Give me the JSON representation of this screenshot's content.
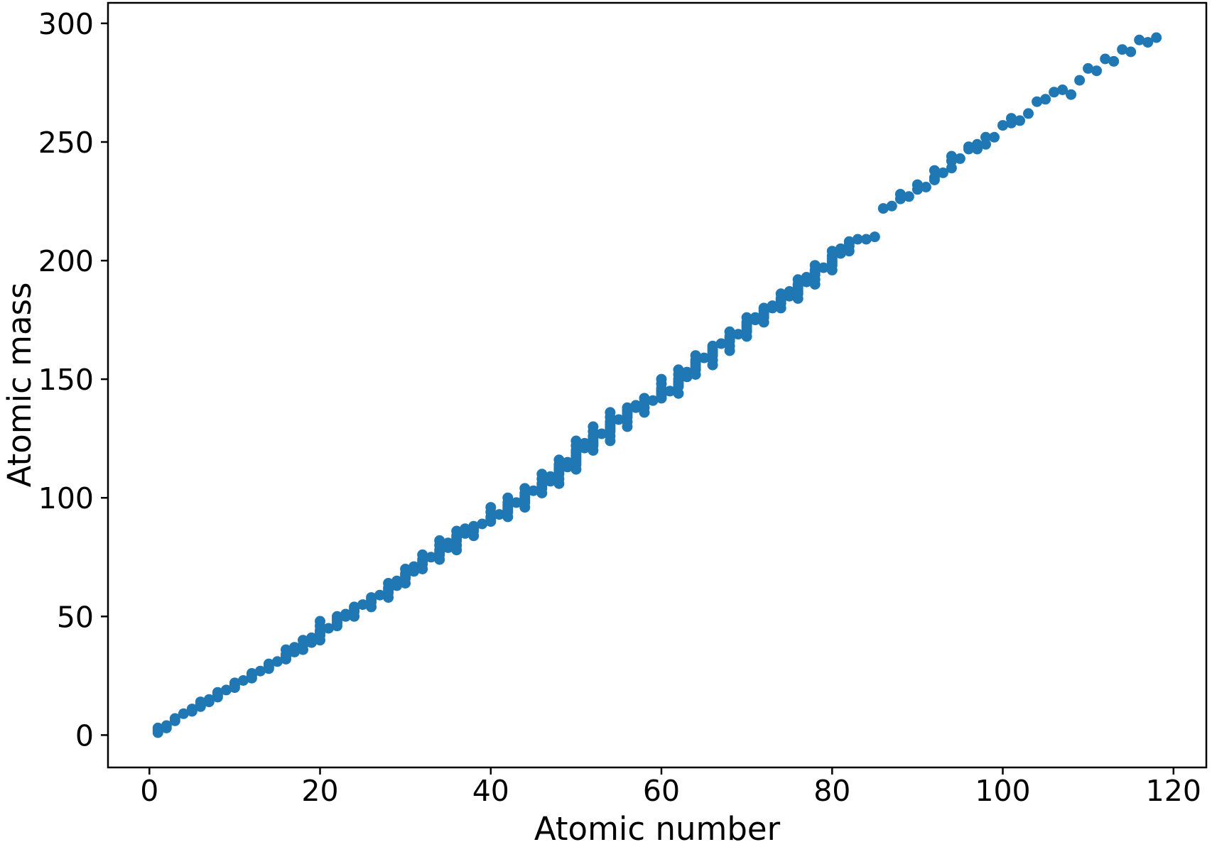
{
  "chart_data": {
    "type": "scatter",
    "title": "",
    "xlabel": "Atomic number",
    "ylabel": "Atomic mass",
    "legend": null,
    "grid": false,
    "marker_color": "#1f77b4",
    "background_color": "#ffffff",
    "axis_color": "#000000",
    "x_ticks": [
      0,
      20,
      40,
      60,
      80,
      100,
      120
    ],
    "y_ticks": [
      0,
      50,
      100,
      150,
      200,
      250,
      300
    ],
    "xlim": [
      -4.85,
      123.85
    ],
    "ylim": [
      -13.65,
      308.65
    ],
    "points": [
      {
        "z": 1,
        "masses": [
          1,
          2,
          3
        ]
      },
      {
        "z": 2,
        "masses": [
          3,
          4
        ]
      },
      {
        "z": 3,
        "masses": [
          6,
          7
        ]
      },
      {
        "z": 4,
        "masses": [
          9
        ]
      },
      {
        "z": 5,
        "masses": [
          10,
          11
        ]
      },
      {
        "z": 6,
        "masses": [
          12,
          13,
          14
        ]
      },
      {
        "z": 7,
        "masses": [
          14,
          15
        ]
      },
      {
        "z": 8,
        "masses": [
          16,
          17,
          18
        ]
      },
      {
        "z": 9,
        "masses": [
          19
        ]
      },
      {
        "z": 10,
        "masses": [
          20,
          21,
          22
        ]
      },
      {
        "z": 11,
        "masses": [
          23
        ]
      },
      {
        "z": 12,
        "masses": [
          24,
          25,
          26
        ]
      },
      {
        "z": 13,
        "masses": [
          27
        ]
      },
      {
        "z": 14,
        "masses": [
          28,
          29,
          30
        ]
      },
      {
        "z": 15,
        "masses": [
          31
        ]
      },
      {
        "z": 16,
        "masses": [
          32,
          33,
          34,
          36
        ]
      },
      {
        "z": 17,
        "masses": [
          35,
          37
        ]
      },
      {
        "z": 18,
        "masses": [
          36,
          38,
          40
        ]
      },
      {
        "z": 19,
        "masses": [
          39,
          40,
          41
        ]
      },
      {
        "z": 20,
        "masses": [
          40,
          42,
          43,
          44,
          46,
          48
        ]
      },
      {
        "z": 21,
        "masses": [
          45
        ]
      },
      {
        "z": 22,
        "masses": [
          46,
          47,
          48,
          49,
          50
        ]
      },
      {
        "z": 23,
        "masses": [
          50,
          51
        ]
      },
      {
        "z": 24,
        "masses": [
          50,
          52,
          53,
          54
        ]
      },
      {
        "z": 25,
        "masses": [
          55
        ]
      },
      {
        "z": 26,
        "masses": [
          54,
          56,
          57,
          58
        ]
      },
      {
        "z": 27,
        "masses": [
          59
        ]
      },
      {
        "z": 28,
        "masses": [
          58,
          60,
          61,
          62,
          64
        ]
      },
      {
        "z": 29,
        "masses": [
          63,
          65
        ]
      },
      {
        "z": 30,
        "masses": [
          64,
          66,
          67,
          68,
          70
        ]
      },
      {
        "z": 31,
        "masses": [
          69,
          71
        ]
      },
      {
        "z": 32,
        "masses": [
          70,
          72,
          73,
          74,
          76
        ]
      },
      {
        "z": 33,
        "masses": [
          75
        ]
      },
      {
        "z": 34,
        "masses": [
          74,
          76,
          77,
          78,
          80,
          82
        ]
      },
      {
        "z": 35,
        "masses": [
          79,
          81
        ]
      },
      {
        "z": 36,
        "masses": [
          78,
          80,
          82,
          83,
          84,
          86
        ]
      },
      {
        "z": 37,
        "masses": [
          85,
          87
        ]
      },
      {
        "z": 38,
        "masses": [
          84,
          86,
          87,
          88
        ]
      },
      {
        "z": 39,
        "masses": [
          89
        ]
      },
      {
        "z": 40,
        "masses": [
          90,
          91,
          92,
          94,
          96
        ]
      },
      {
        "z": 41,
        "masses": [
          93
        ]
      },
      {
        "z": 42,
        "masses": [
          92,
          94,
          95,
          96,
          97,
          98,
          100
        ]
      },
      {
        "z": 43,
        "masses": [
          98
        ]
      },
      {
        "z": 44,
        "masses": [
          96,
          98,
          99,
          100,
          101,
          102,
          104
        ]
      },
      {
        "z": 45,
        "masses": [
          103
        ]
      },
      {
        "z": 46,
        "masses": [
          102,
          104,
          105,
          106,
          108,
          110
        ]
      },
      {
        "z": 47,
        "masses": [
          107,
          109
        ]
      },
      {
        "z": 48,
        "masses": [
          106,
          108,
          110,
          111,
          112,
          113,
          114,
          116
        ]
      },
      {
        "z": 49,
        "masses": [
          113,
          115
        ]
      },
      {
        "z": 50,
        "masses": [
          112,
          114,
          115,
          116,
          117,
          118,
          119,
          120,
          122,
          124
        ]
      },
      {
        "z": 51,
        "masses": [
          121,
          123
        ]
      },
      {
        "z": 52,
        "masses": [
          120,
          122,
          123,
          124,
          125,
          126,
          128,
          130
        ]
      },
      {
        "z": 53,
        "masses": [
          127
        ]
      },
      {
        "z": 54,
        "masses": [
          124,
          126,
          128,
          129,
          130,
          131,
          132,
          134,
          136
        ]
      },
      {
        "z": 55,
        "masses": [
          133
        ]
      },
      {
        "z": 56,
        "masses": [
          130,
          132,
          134,
          135,
          136,
          137,
          138
        ]
      },
      {
        "z": 57,
        "masses": [
          138,
          139
        ]
      },
      {
        "z": 58,
        "masses": [
          136,
          138,
          140,
          142
        ]
      },
      {
        "z": 59,
        "masses": [
          141
        ]
      },
      {
        "z": 60,
        "masses": [
          142,
          143,
          144,
          145,
          146,
          148,
          150
        ]
      },
      {
        "z": 61,
        "masses": [
          145
        ]
      },
      {
        "z": 62,
        "masses": [
          144,
          147,
          148,
          149,
          150,
          152,
          154
        ]
      },
      {
        "z": 63,
        "masses": [
          151,
          153
        ]
      },
      {
        "z": 64,
        "masses": [
          152,
          154,
          155,
          156,
          157,
          158,
          160
        ]
      },
      {
        "z": 65,
        "masses": [
          159
        ]
      },
      {
        "z": 66,
        "masses": [
          156,
          158,
          160,
          161,
          162,
          163,
          164
        ]
      },
      {
        "z": 67,
        "masses": [
          165
        ]
      },
      {
        "z": 68,
        "masses": [
          162,
          164,
          166,
          167,
          168,
          170
        ]
      },
      {
        "z": 69,
        "masses": [
          169
        ]
      },
      {
        "z": 70,
        "masses": [
          168,
          170,
          171,
          172,
          173,
          174,
          176
        ]
      },
      {
        "z": 71,
        "masses": [
          175,
          176
        ]
      },
      {
        "z": 72,
        "masses": [
          174,
          176,
          177,
          178,
          179,
          180
        ]
      },
      {
        "z": 73,
        "masses": [
          180,
          181
        ]
      },
      {
        "z": 74,
        "masses": [
          180,
          182,
          183,
          184,
          186
        ]
      },
      {
        "z": 75,
        "masses": [
          185,
          187
        ]
      },
      {
        "z": 76,
        "masses": [
          184,
          186,
          187,
          188,
          189,
          190,
          192
        ]
      },
      {
        "z": 77,
        "masses": [
          191,
          193
        ]
      },
      {
        "z": 78,
        "masses": [
          190,
          192,
          194,
          195,
          196,
          198
        ]
      },
      {
        "z": 79,
        "masses": [
          197
        ]
      },
      {
        "z": 80,
        "masses": [
          196,
          198,
          199,
          200,
          201,
          202,
          204
        ]
      },
      {
        "z": 81,
        "masses": [
          203,
          205
        ]
      },
      {
        "z": 82,
        "masses": [
          204,
          206,
          207,
          208
        ]
      },
      {
        "z": 83,
        "masses": [
          209
        ]
      },
      {
        "z": 84,
        "masses": [
          209
        ]
      },
      {
        "z": 85,
        "masses": [
          210
        ]
      },
      {
        "z": 86,
        "masses": [
          222
        ]
      },
      {
        "z": 87,
        "masses": [
          223
        ]
      },
      {
        "z": 88,
        "masses": [
          226,
          228
        ]
      },
      {
        "z": 89,
        "masses": [
          227
        ]
      },
      {
        "z": 90,
        "masses": [
          230,
          232
        ]
      },
      {
        "z": 91,
        "masses": [
          231
        ]
      },
      {
        "z": 92,
        "masses": [
          234,
          235,
          238
        ]
      },
      {
        "z": 93,
        "masses": [
          237
        ]
      },
      {
        "z": 94,
        "masses": [
          239,
          242,
          244
        ]
      },
      {
        "z": 95,
        "masses": [
          243
        ]
      },
      {
        "z": 96,
        "masses": [
          247,
          248
        ]
      },
      {
        "z": 97,
        "masses": [
          247,
          249
        ]
      },
      {
        "z": 98,
        "masses": [
          249,
          252
        ]
      },
      {
        "z": 99,
        "masses": [
          252
        ]
      },
      {
        "z": 100,
        "masses": [
          257
        ]
      },
      {
        "z": 101,
        "masses": [
          258,
          260
        ]
      },
      {
        "z": 102,
        "masses": [
          259
        ]
      },
      {
        "z": 103,
        "masses": [
          262
        ]
      },
      {
        "z": 104,
        "masses": [
          267
        ]
      },
      {
        "z": 105,
        "masses": [
          268
        ]
      },
      {
        "z": 106,
        "masses": [
          271
        ]
      },
      {
        "z": 107,
        "masses": [
          272
        ]
      },
      {
        "z": 108,
        "masses": [
          270
        ]
      },
      {
        "z": 109,
        "masses": [
          276
        ]
      },
      {
        "z": 110,
        "masses": [
          281
        ]
      },
      {
        "z": 111,
        "masses": [
          280
        ]
      },
      {
        "z": 112,
        "masses": [
          285
        ]
      },
      {
        "z": 113,
        "masses": [
          284
        ]
      },
      {
        "z": 114,
        "masses": [
          289
        ]
      },
      {
        "z": 115,
        "masses": [
          288
        ]
      },
      {
        "z": 116,
        "masses": [
          293
        ]
      },
      {
        "z": 117,
        "masses": [
          292
        ]
      },
      {
        "z": 118,
        "masses": [
          294
        ]
      }
    ]
  }
}
